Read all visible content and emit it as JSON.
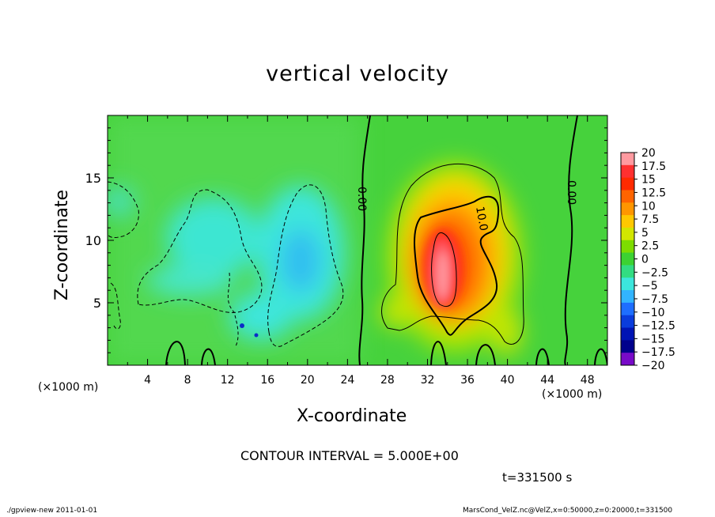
{
  "chart_data": {
    "type": "heatmap",
    "title": "vertical velocity",
    "xlabel": "X-coordinate",
    "ylabel": "Z-coordinate",
    "x_unit_label": "(×1000 m)",
    "xlim": [
      0,
      50
    ],
    "ylim": [
      0,
      20
    ],
    "x_ticks": [
      "4",
      "8",
      "12",
      "16",
      "20",
      "24",
      "28",
      "32",
      "36",
      "40",
      "44",
      "48"
    ],
    "y_ticks": [
      "5",
      "10",
      "15"
    ],
    "contour_labels": [
      "0.00",
      "10.0",
      "0.00"
    ],
    "colorbar": {
      "labels": [
        "20",
        "17.5",
        "15",
        "12.5",
        "10",
        "7.5",
        "5",
        "2.5",
        "0",
        "−2.5",
        "−5",
        "−7.5",
        "−10",
        "−12.5",
        "−15",
        "−17.5",
        "−20"
      ],
      "colors": [
        "#ff9aa0",
        "#ff3030",
        "#ff2a00",
        "#ff6400",
        "#ff9600",
        "#ffc800",
        "#d2e600",
        "#7ddc00",
        "#3cd232",
        "#32dc82",
        "#3ce6dc",
        "#32b4ff",
        "#1e6eff",
        "#0a3cdc",
        "#0014b4",
        "#00008c",
        "#780ac8"
      ]
    },
    "features": [
      {
        "kind": "updraft",
        "x_range": [
          27,
          42
        ],
        "z_range": [
          2,
          14
        ],
        "max": 20
      },
      {
        "kind": "downdraft",
        "x_range": [
          0,
          24
        ],
        "z_range": [
          1,
          15
        ],
        "min": -10
      }
    ]
  },
  "labels": {
    "contour_interval": "CONTOUR INTERVAL = 5.000E+00",
    "time": "t=331500 s",
    "footer_left": "./gpview-new   2011-01-01",
    "footer_right": "MarsCond_VelZ.nc@VelZ,x=0:50000,z=0:20000,t=331500"
  }
}
